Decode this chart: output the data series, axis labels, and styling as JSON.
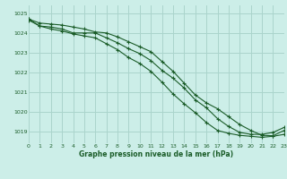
{
  "title": "Graphe pression niveau de la mer (hPa)",
  "bg_color": "#cceee8",
  "grid_color": "#aad4cc",
  "line_color": "#1a5c28",
  "xlim": [
    0,
    23
  ],
  "ylim": [
    1018.4,
    1025.4
  ],
  "yticks": [
    1019,
    1020,
    1021,
    1022,
    1023,
    1024,
    1025
  ],
  "xticks": [
    0,
    1,
    2,
    3,
    4,
    5,
    6,
    7,
    8,
    9,
    10,
    11,
    12,
    13,
    14,
    15,
    16,
    17,
    18,
    19,
    20,
    21,
    22,
    23
  ],
  "series": [
    [
      1024.7,
      1024.35,
      1024.3,
      1024.2,
      1024.0,
      1024.0,
      1024.0,
      1023.75,
      1023.5,
      1023.2,
      1022.95,
      1022.6,
      1022.1,
      1021.7,
      1021.2,
      1020.6,
      1020.2,
      1019.65,
      1019.25,
      1018.95,
      1018.85,
      1018.85,
      1018.95,
      1019.2
    ],
    [
      1024.65,
      1024.35,
      1024.2,
      1024.1,
      1023.95,
      1023.85,
      1023.75,
      1023.45,
      1023.15,
      1022.75,
      1022.45,
      1022.05,
      1021.5,
      1020.9,
      1020.4,
      1019.95,
      1019.45,
      1019.05,
      1018.9,
      1018.8,
      1018.75,
      1018.7,
      1018.75,
      1018.85
    ],
    [
      1024.7,
      1024.5,
      1024.45,
      1024.4,
      1024.3,
      1024.2,
      1024.05,
      1024.0,
      1023.8,
      1023.55,
      1023.3,
      1023.05,
      1022.55,
      1022.05,
      1021.45,
      1020.85,
      1020.45,
      1020.15,
      1019.75,
      1019.35,
      1019.05,
      1018.8,
      1018.78,
      1019.05
    ]
  ]
}
